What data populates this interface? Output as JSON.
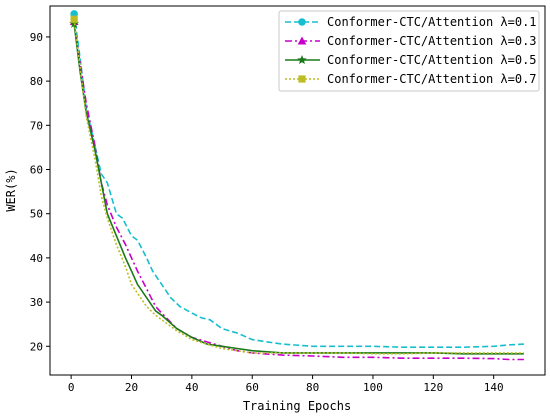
{
  "chart_data": {
    "type": "line",
    "title": "",
    "xlabel": "Training Epochs",
    "ylabel": "WER(%)",
    "xlim": [
      -7,
      157
    ],
    "ylim": [
      13.5,
      97
    ],
    "xticks": [
      0,
      20,
      40,
      60,
      80,
      100,
      120,
      140
    ],
    "yticks": [
      20,
      30,
      40,
      50,
      60,
      70,
      80,
      90
    ],
    "grid": false,
    "legend_position": "top-right",
    "series": [
      {
        "name": "Conformer-CTC/Attention  λ=0.1",
        "color": "#17becf",
        "line_style": "dashed",
        "marker": "circle",
        "points": [
          [
            1,
            95.2
          ],
          [
            3,
            85
          ],
          [
            5,
            74
          ],
          [
            7,
            68
          ],
          [
            10,
            59
          ],
          [
            12,
            57
          ],
          [
            15,
            50
          ],
          [
            17,
            49
          ],
          [
            20,
            45
          ],
          [
            22,
            44
          ],
          [
            25,
            40
          ],
          [
            27,
            37
          ],
          [
            30,
            34
          ],
          [
            33,
            31
          ],
          [
            36,
            29
          ],
          [
            40,
            27.5
          ],
          [
            43,
            26.5
          ],
          [
            46,
            26
          ],
          [
            50,
            24
          ],
          [
            55,
            23
          ],
          [
            60,
            21.5
          ],
          [
            65,
            21
          ],
          [
            70,
            20.5
          ],
          [
            80,
            20
          ],
          [
            90,
            20
          ],
          [
            100,
            20
          ],
          [
            110,
            19.8
          ],
          [
            120,
            19.8
          ],
          [
            130,
            19.8
          ],
          [
            140,
            20
          ],
          [
            145,
            20.3
          ],
          [
            150,
            20.5
          ]
        ]
      },
      {
        "name": "Conformer-CTC/Attention  λ=0.3",
        "color": "#c800c8",
        "line_style": "dashdot",
        "marker": "triangle",
        "points": [
          [
            1,
            93.5
          ],
          [
            3,
            84
          ],
          [
            5,
            75
          ],
          [
            8,
            65
          ],
          [
            10,
            57
          ],
          [
            12,
            52
          ],
          [
            15,
            47
          ],
          [
            18,
            43
          ],
          [
            20,
            40
          ],
          [
            22,
            37
          ],
          [
            25,
            33
          ],
          [
            28,
            29
          ],
          [
            30,
            27.5
          ],
          [
            35,
            24
          ],
          [
            40,
            22
          ],
          [
            45,
            21
          ],
          [
            50,
            20
          ],
          [
            55,
            19
          ],
          [
            60,
            18.5
          ],
          [
            70,
            18
          ],
          [
            80,
            17.8
          ],
          [
            90,
            17.5
          ],
          [
            100,
            17.5
          ],
          [
            110,
            17.3
          ],
          [
            120,
            17.3
          ],
          [
            130,
            17.3
          ],
          [
            140,
            17.2
          ],
          [
            145,
            17
          ],
          [
            150,
            17
          ]
        ]
      },
      {
        "name": "Conformer-CTC/Attention  λ=0.5",
        "color": "#1a7a1a",
        "line_style": "solid",
        "marker": "star",
        "points": [
          [
            1,
            93
          ],
          [
            3,
            82
          ],
          [
            5,
            73
          ],
          [
            8,
            64
          ],
          [
            10,
            57
          ],
          [
            12,
            50
          ],
          [
            15,
            45
          ],
          [
            18,
            40
          ],
          [
            20,
            37
          ],
          [
            22,
            34
          ],
          [
            25,
            31
          ],
          [
            28,
            28
          ],
          [
            30,
            27
          ],
          [
            35,
            24
          ],
          [
            40,
            22
          ],
          [
            45,
            20.5
          ],
          [
            50,
            20
          ],
          [
            55,
            19.5
          ],
          [
            60,
            19
          ],
          [
            70,
            18.5
          ],
          [
            80,
            18.5
          ],
          [
            90,
            18.5
          ],
          [
            100,
            18.5
          ],
          [
            110,
            18.5
          ],
          [
            120,
            18.5
          ],
          [
            130,
            18.3
          ],
          [
            140,
            18.3
          ],
          [
            150,
            18.3
          ]
        ]
      },
      {
        "name": "Conformer-CTC/Attention  λ=0.7",
        "color": "#bcbd22",
        "line_style": "dotted",
        "marker": "square",
        "points": [
          [
            1,
            94
          ],
          [
            3,
            83
          ],
          [
            5,
            72
          ],
          [
            8,
            62
          ],
          [
            10,
            54
          ],
          [
            12,
            49
          ],
          [
            15,
            43
          ],
          [
            18,
            38
          ],
          [
            20,
            34
          ],
          [
            22,
            32
          ],
          [
            25,
            29
          ],
          [
            28,
            27
          ],
          [
            30,
            26
          ],
          [
            35,
            23.5
          ],
          [
            40,
            21.5
          ],
          [
            45,
            20.5
          ],
          [
            50,
            19.5
          ],
          [
            55,
            19
          ],
          [
            60,
            18.5
          ],
          [
            70,
            18.5
          ],
          [
            80,
            18.5
          ],
          [
            90,
            18.5
          ],
          [
            100,
            18.3
          ],
          [
            110,
            18.3
          ],
          [
            120,
            18.5
          ],
          [
            130,
            18.5
          ],
          [
            140,
            18.5
          ],
          [
            150,
            18.5
          ]
        ]
      }
    ]
  }
}
